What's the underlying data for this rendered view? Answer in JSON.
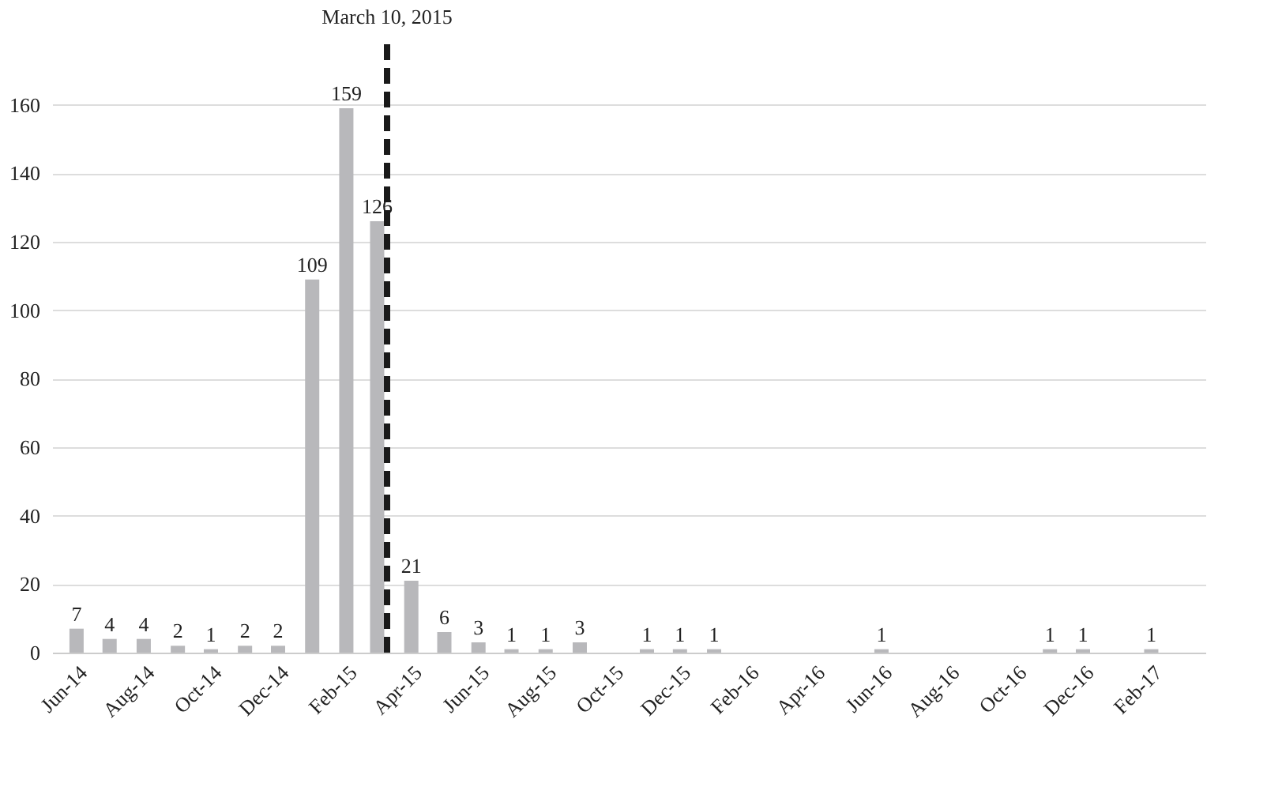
{
  "chart_data": {
    "type": "bar",
    "x": [
      "2014-06",
      "2014-07",
      "2014-08",
      "2014-09",
      "2014-10",
      "2014-11",
      "2014-12",
      "2015-01",
      "2015-02",
      "2015-03",
      "2015-04",
      "2015-05",
      "2015-06",
      "2015-07",
      "2015-08",
      "2015-09",
      "2015-10",
      "2015-11",
      "2015-12",
      "2016-01",
      "2016-02",
      "2016-03",
      "2016-04",
      "2016-05",
      "2016-06",
      "2016-07",
      "2016-08",
      "2016-09",
      "2016-10",
      "2016-11",
      "2016-12",
      "2017-01",
      "2017-02"
    ],
    "values": [
      7,
      4,
      4,
      2,
      1,
      2,
      2,
      109,
      159,
      126,
      21,
      6,
      3,
      1,
      1,
      3,
      null,
      1,
      1,
      1,
      null,
      null,
      null,
      null,
      1,
      null,
      null,
      null,
      null,
      1,
      1,
      null,
      1
    ],
    "color": "#b8b8bb",
    "data_labels": true,
    "xlim": [
      "2014-05-17",
      "2017-03-15"
    ],
    "xticks": [
      {
        "value": "2014-06",
        "label": "Jun-14"
      },
      {
        "value": "2014-08",
        "label": "Aug-14"
      },
      {
        "value": "2014-10",
        "label": "Oct-14"
      },
      {
        "value": "2014-12",
        "label": "Dec-14"
      },
      {
        "value": "2015-02",
        "label": "Feb-15"
      },
      {
        "value": "2015-04",
        "label": "Apr-15"
      },
      {
        "value": "2015-06",
        "label": "Jun-15"
      },
      {
        "value": "2015-08",
        "label": "Aug-15"
      },
      {
        "value": "2015-10",
        "label": "Oct-15"
      },
      {
        "value": "2015-12",
        "label": "Dec-15"
      },
      {
        "value": "2016-02",
        "label": "Feb-16"
      },
      {
        "value": "2016-04",
        "label": "Apr-16"
      },
      {
        "value": "2016-06",
        "label": "Jun-16"
      },
      {
        "value": "2016-08",
        "label": "Aug-16"
      },
      {
        "value": "2016-10",
        "label": "Oct-16"
      },
      {
        "value": "2016-12",
        "label": "Dec-16"
      },
      {
        "value": "2017-02",
        "label": "Feb-17"
      }
    ],
    "ylim": [
      0,
      180
    ],
    "yticks": [
      0,
      20,
      40,
      60,
      80,
      100,
      120,
      140,
      160
    ],
    "grid": "y",
    "ref_lines": [
      {
        "axis": "x",
        "value": "2015-03-10",
        "label": "March 10, 2015",
        "color": "#1a1a1a",
        "line_style": "dashed"
      }
    ]
  }
}
